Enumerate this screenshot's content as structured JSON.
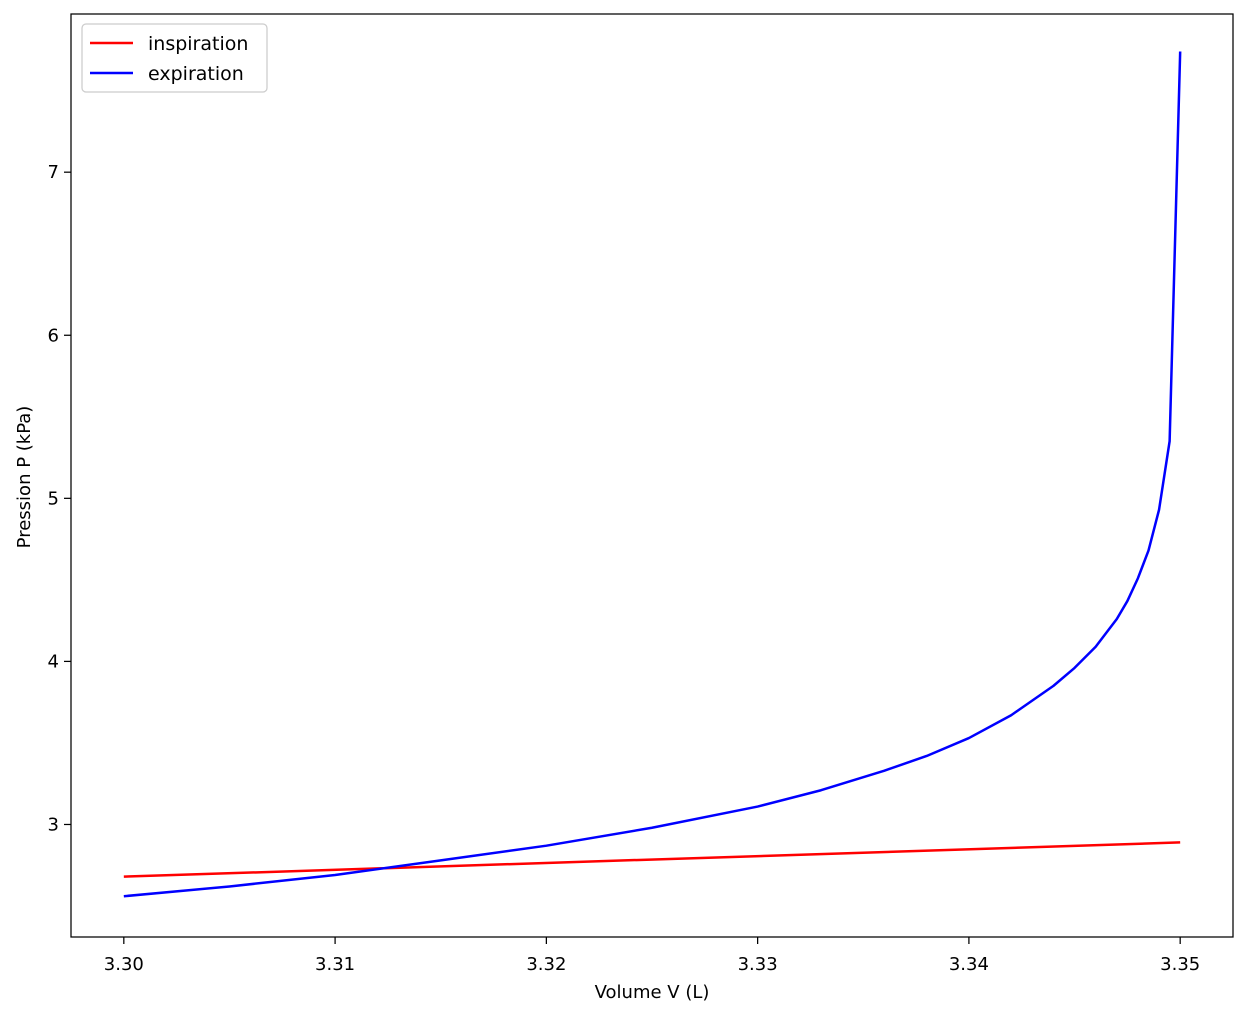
{
  "chart_data": {
    "type": "line",
    "title": "",
    "xlabel": "Volume V (L)",
    "ylabel": "Pression P (kPa)",
    "xlim": [
      3.2975,
      3.3525
    ],
    "ylim": [
      2.31,
      7.97
    ],
    "x_ticks": [
      3.3,
      3.31,
      3.32,
      3.33,
      3.34,
      3.35
    ],
    "x_tick_labels": [
      "3.30",
      "3.31",
      "3.32",
      "3.33",
      "3.34",
      "3.35"
    ],
    "y_ticks": [
      3,
      4,
      5,
      6,
      7
    ],
    "y_tick_labels": [
      "3",
      "4",
      "5",
      "6",
      "7"
    ],
    "grid": false,
    "legend_position": "top-left",
    "series": [
      {
        "name": "inspiration",
        "color": "#ff0000",
        "x": [
          3.3,
          3.35
        ],
        "y": [
          2.68,
          2.89
        ]
      },
      {
        "name": "expiration",
        "color": "#0000ff",
        "x": [
          3.3,
          3.305,
          3.31,
          3.315,
          3.32,
          3.325,
          3.33,
          3.333,
          3.336,
          3.338,
          3.34,
          3.342,
          3.344,
          3.345,
          3.346,
          3.347,
          3.3475,
          3.348,
          3.3485,
          3.349,
          3.3495,
          3.35
        ],
        "y": [
          2.56,
          2.62,
          2.69,
          2.78,
          2.87,
          2.98,
          3.11,
          3.21,
          3.33,
          3.42,
          3.53,
          3.67,
          3.85,
          3.96,
          4.09,
          4.26,
          4.37,
          4.51,
          4.68,
          4.93,
          5.35,
          7.74
        ]
      }
    ]
  }
}
